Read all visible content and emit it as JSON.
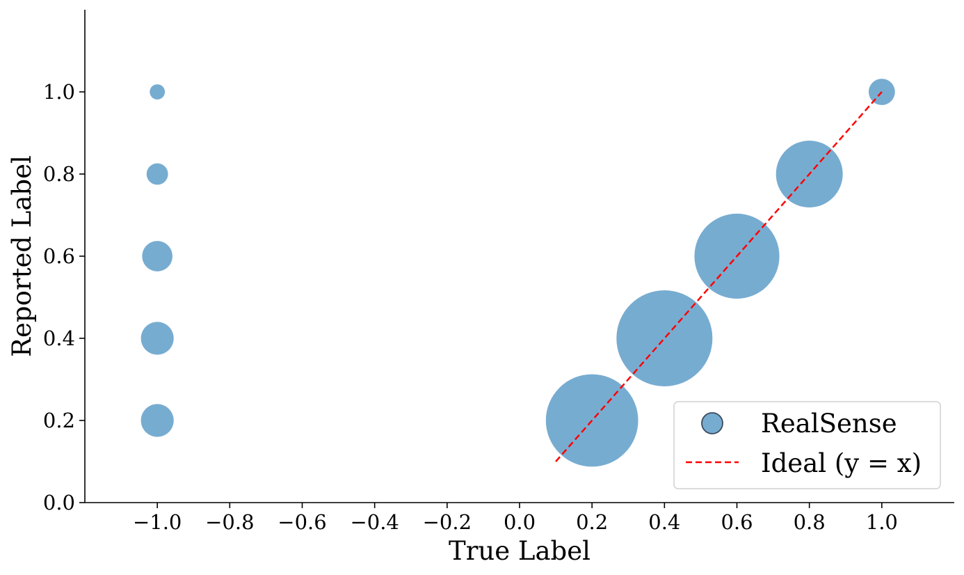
{
  "chart_data": {
    "type": "scatter",
    "xlabel": "True Label",
    "ylabel": "Reported Label",
    "xlim": [
      -1.2,
      1.2
    ],
    "ylim": [
      0.0,
      1.2
    ],
    "xticks": [
      "−1.0",
      "−0.8",
      "−0.6",
      "−0.4",
      "−0.2",
      "0.0",
      "0.2",
      "0.4",
      "0.6",
      "0.8",
      "1.0"
    ],
    "xtick_values": [
      -1.0,
      -0.8,
      -0.6,
      -0.4,
      -0.2,
      0.0,
      0.2,
      0.4,
      0.6,
      0.8,
      1.0
    ],
    "yticks": [
      "0.0",
      "0.2",
      "0.4",
      "0.6",
      "0.8",
      "1.0"
    ],
    "ytick_values": [
      0.0,
      0.2,
      0.4,
      0.6,
      0.8,
      1.0
    ],
    "grid": false,
    "legend_position": "lower-right",
    "series": [
      {
        "name": "RealSense",
        "kind": "bubble",
        "color": "#4a90c2",
        "opacity": 0.75,
        "points": [
          {
            "x": -1.0,
            "y": 1.0,
            "size": 3
          },
          {
            "x": -1.0,
            "y": 0.8,
            "size": 6
          },
          {
            "x": -1.0,
            "y": 0.6,
            "size": 12
          },
          {
            "x": -1.0,
            "y": 0.4,
            "size": 14
          },
          {
            "x": -1.0,
            "y": 0.2,
            "size": 14
          },
          {
            "x": 0.2,
            "y": 0.2,
            "size": 111
          },
          {
            "x": 0.4,
            "y": 0.4,
            "size": 120
          },
          {
            "x": 0.6,
            "y": 0.6,
            "size": 94
          },
          {
            "x": 0.8,
            "y": 0.8,
            "size": 58
          },
          {
            "x": 1.0,
            "y": 1.0,
            "size": 9
          }
        ]
      },
      {
        "name": "Ideal (y = x)",
        "kind": "line",
        "color": "#ff0000",
        "dashed": true,
        "points": [
          {
            "x": 0.1,
            "y": 0.1
          },
          {
            "x": 1.0,
            "y": 1.0
          }
        ]
      }
    ]
  }
}
